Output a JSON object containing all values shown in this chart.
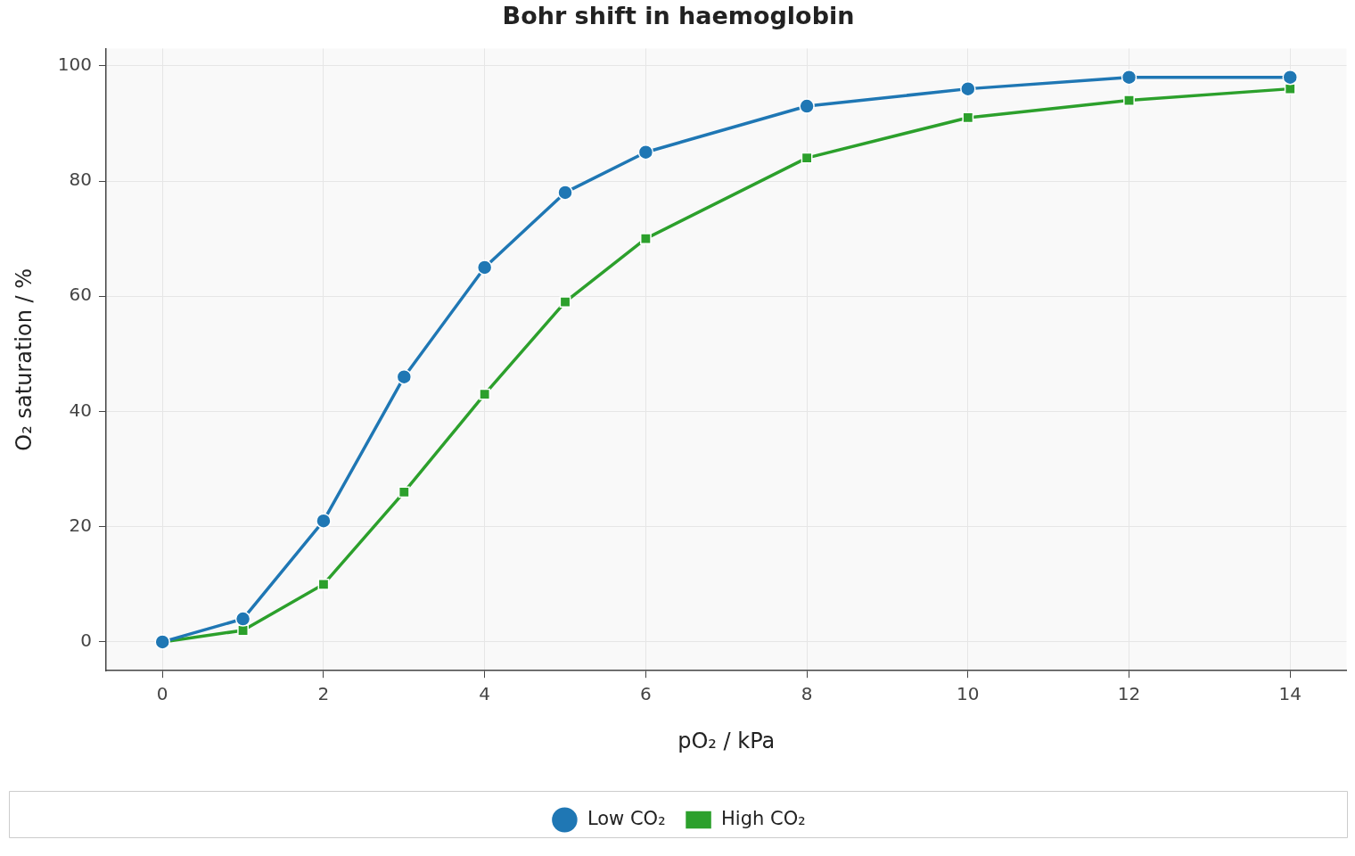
{
  "chart_data": {
    "type": "line",
    "title": "Bohr shift in haemoglobin",
    "xlabel": "pO₂ / kPa",
    "ylabel": "O₂ saturation / %",
    "x": [
      0,
      1,
      2,
      3,
      4,
      5,
      6,
      8,
      10,
      12,
      14
    ],
    "series": [
      {
        "name": "Low CO₂",
        "color": "#1f77b4",
        "marker": "circle",
        "values": [
          0,
          4,
          21,
          46,
          65,
          78,
          85,
          93,
          96,
          98,
          98
        ]
      },
      {
        "name": "High CO₂",
        "color": "#2ca02c",
        "marker": "square",
        "values": [
          0,
          2,
          10,
          26,
          43,
          59,
          70,
          84,
          91,
          94,
          96
        ]
      }
    ],
    "xlim": [
      -0.7,
      14.7
    ],
    "xticks": [
      0,
      2,
      4,
      6,
      8,
      10,
      12,
      14
    ],
    "ylim": [
      -5,
      103
    ],
    "yticks": [
      0,
      20,
      40,
      60,
      80,
      100
    ],
    "grid": true,
    "legend": "bottom",
    "line_style": "solid"
  }
}
